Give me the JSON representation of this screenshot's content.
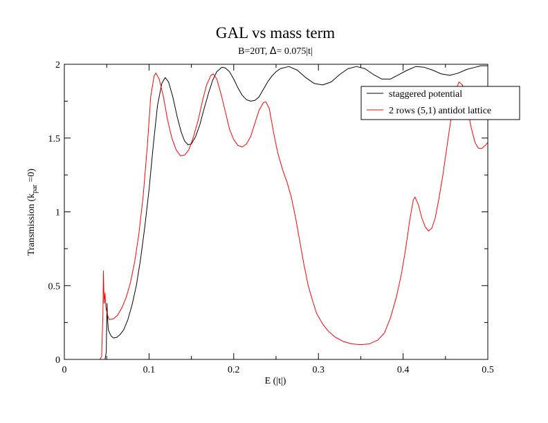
{
  "chart_data": {
    "type": "line",
    "title": "GAL vs mass term",
    "subtitle_prefix": "B=20T, ",
    "subtitle_delta": "Δ",
    "subtitle_suffix": "= 0.075|t|",
    "xlabel": "E (|t|)",
    "ylabel_main": "Transmission  (k",
    "ylabel_sub": "par",
    "ylabel_end": " =0)",
    "xlim": [
      0,
      0.5
    ],
    "ylim": [
      0,
      2
    ],
    "xticks": [
      0,
      0.1,
      0.2,
      0.3,
      0.4,
      0.5
    ],
    "xtick_labels": [
      "0",
      "0.1",
      "0.2",
      "0.3",
      "0.4",
      "0.5"
    ],
    "yticks": [
      0,
      0.5,
      1,
      1.5,
      2
    ],
    "ytick_labels": [
      "0",
      "0.5",
      "1",
      "1.5",
      "2"
    ],
    "grid": false,
    "legend_position": "top-right",
    "series": [
      {
        "name": "staggered potential",
        "color": "#000000",
        "points": [
          [
            0,
            0
          ],
          [
            0.048,
            0
          ],
          [
            0.0495,
            0.05
          ],
          [
            0.0503,
            0.38
          ],
          [
            0.051,
            0.28
          ],
          [
            0.052,
            0.2
          ],
          [
            0.055,
            0.16
          ],
          [
            0.058,
            0.145
          ],
          [
            0.062,
            0.15
          ],
          [
            0.066,
            0.17
          ],
          [
            0.07,
            0.2
          ],
          [
            0.075,
            0.27
          ],
          [
            0.08,
            0.37
          ],
          [
            0.085,
            0.5
          ],
          [
            0.09,
            0.68
          ],
          [
            0.095,
            0.9
          ],
          [
            0.1,
            1.15
          ],
          [
            0.105,
            1.45
          ],
          [
            0.11,
            1.72
          ],
          [
            0.115,
            1.87
          ],
          [
            0.119,
            1.91
          ],
          [
            0.123,
            1.88
          ],
          [
            0.128,
            1.78
          ],
          [
            0.133,
            1.65
          ],
          [
            0.138,
            1.54
          ],
          [
            0.142,
            1.48
          ],
          [
            0.146,
            1.455
          ],
          [
            0.15,
            1.46
          ],
          [
            0.155,
            1.51
          ],
          [
            0.16,
            1.59
          ],
          [
            0.165,
            1.7
          ],
          [
            0.17,
            1.8
          ],
          [
            0.175,
            1.89
          ],
          [
            0.18,
            1.95
          ],
          [
            0.186,
            1.98
          ],
          [
            0.19,
            1.975
          ],
          [
            0.195,
            1.95
          ],
          [
            0.2,
            1.9
          ],
          [
            0.205,
            1.84
          ],
          [
            0.21,
            1.79
          ],
          [
            0.215,
            1.76
          ],
          [
            0.22,
            1.75
          ],
          [
            0.225,
            1.755
          ],
          [
            0.23,
            1.78
          ],
          [
            0.235,
            1.83
          ],
          [
            0.24,
            1.88
          ],
          [
            0.245,
            1.92
          ],
          [
            0.25,
            1.95
          ],
          [
            0.255,
            1.97
          ],
          [
            0.265,
            1.985
          ],
          [
            0.275,
            1.96
          ],
          [
            0.285,
            1.91
          ],
          [
            0.295,
            1.87
          ],
          [
            0.305,
            1.86
          ],
          [
            0.315,
            1.88
          ],
          [
            0.325,
            1.93
          ],
          [
            0.335,
            1.97
          ],
          [
            0.345,
            1.985
          ],
          [
            0.355,
            1.97
          ],
          [
            0.365,
            1.93
          ],
          [
            0.375,
            1.9
          ],
          [
            0.385,
            1.9
          ],
          [
            0.395,
            1.93
          ],
          [
            0.405,
            1.96
          ],
          [
            0.415,
            1.985
          ],
          [
            0.425,
            1.98
          ],
          [
            0.435,
            1.96
          ],
          [
            0.445,
            1.935
          ],
          [
            0.455,
            1.925
          ],
          [
            0.465,
            1.94
          ],
          [
            0.475,
            1.965
          ],
          [
            0.485,
            1.98
          ],
          [
            0.492,
            1.99
          ],
          [
            0.5,
            1.99
          ]
        ]
      },
      {
        "name": "2 rows (5,1) antidot lattice",
        "color": "#ff0000",
        "points": [
          [
            0,
            0
          ],
          [
            0.042,
            0
          ],
          [
            0.044,
            0.02
          ],
          [
            0.0455,
            0.3
          ],
          [
            0.0462,
            0.6
          ],
          [
            0.047,
            0.38
          ],
          [
            0.048,
            0.45
          ],
          [
            0.049,
            0.35
          ],
          [
            0.051,
            0.3
          ],
          [
            0.053,
            0.27
          ],
          [
            0.058,
            0.275
          ],
          [
            0.063,
            0.3
          ],
          [
            0.068,
            0.35
          ],
          [
            0.073,
            0.42
          ],
          [
            0.078,
            0.52
          ],
          [
            0.083,
            0.66
          ],
          [
            0.088,
            0.85
          ],
          [
            0.093,
            1.1
          ],
          [
            0.098,
            1.45
          ],
          [
            0.102,
            1.78
          ],
          [
            0.106,
            1.92
          ],
          [
            0.108,
            1.94
          ],
          [
            0.112,
            1.9
          ],
          [
            0.117,
            1.78
          ],
          [
            0.122,
            1.62
          ],
          [
            0.127,
            1.5
          ],
          [
            0.132,
            1.42
          ],
          [
            0.137,
            1.38
          ],
          [
            0.142,
            1.385
          ],
          [
            0.147,
            1.42
          ],
          [
            0.152,
            1.5
          ],
          [
            0.158,
            1.62
          ],
          [
            0.163,
            1.75
          ],
          [
            0.168,
            1.86
          ],
          [
            0.173,
            1.925
          ],
          [
            0.176,
            1.935
          ],
          [
            0.18,
            1.9
          ],
          [
            0.185,
            1.8
          ],
          [
            0.19,
            1.68
          ],
          [
            0.195,
            1.56
          ],
          [
            0.2,
            1.49
          ],
          [
            0.205,
            1.45
          ],
          [
            0.21,
            1.44
          ],
          [
            0.215,
            1.46
          ],
          [
            0.22,
            1.51
          ],
          [
            0.225,
            1.6
          ],
          [
            0.23,
            1.69
          ],
          [
            0.235,
            1.74
          ],
          [
            0.238,
            1.745
          ],
          [
            0.242,
            1.7
          ],
          [
            0.247,
            1.54
          ],
          [
            0.252,
            1.4
          ],
          [
            0.258,
            1.28
          ],
          [
            0.263,
            1.2
          ],
          [
            0.268,
            1.1
          ],
          [
            0.273,
            0.96
          ],
          [
            0.278,
            0.8
          ],
          [
            0.283,
            0.64
          ],
          [
            0.288,
            0.5
          ],
          [
            0.293,
            0.4
          ],
          [
            0.298,
            0.31
          ],
          [
            0.305,
            0.24
          ],
          [
            0.312,
            0.19
          ],
          [
            0.32,
            0.15
          ],
          [
            0.33,
            0.12
          ],
          [
            0.34,
            0.105
          ],
          [
            0.35,
            0.1
          ],
          [
            0.36,
            0.105
          ],
          [
            0.37,
            0.13
          ],
          [
            0.378,
            0.18
          ],
          [
            0.385,
            0.28
          ],
          [
            0.392,
            0.42
          ],
          [
            0.398,
            0.58
          ],
          [
            0.403,
            0.75
          ],
          [
            0.408,
            0.95
          ],
          [
            0.412,
            1.08
          ],
          [
            0.414,
            1.1
          ],
          [
            0.418,
            1.05
          ],
          [
            0.422,
            0.96
          ],
          [
            0.426,
            0.9
          ],
          [
            0.43,
            0.87
          ],
          [
            0.434,
            0.89
          ],
          [
            0.438,
            0.96
          ],
          [
            0.442,
            1.08
          ],
          [
            0.447,
            1.25
          ],
          [
            0.452,
            1.45
          ],
          [
            0.457,
            1.65
          ],
          [
            0.462,
            1.82
          ],
          [
            0.466,
            1.88
          ],
          [
            0.47,
            1.86
          ],
          [
            0.475,
            1.74
          ],
          [
            0.48,
            1.58
          ],
          [
            0.485,
            1.47
          ],
          [
            0.489,
            1.43
          ],
          [
            0.493,
            1.43
          ],
          [
            0.497,
            1.45
          ],
          [
            0.5,
            1.47
          ]
        ]
      }
    ]
  }
}
